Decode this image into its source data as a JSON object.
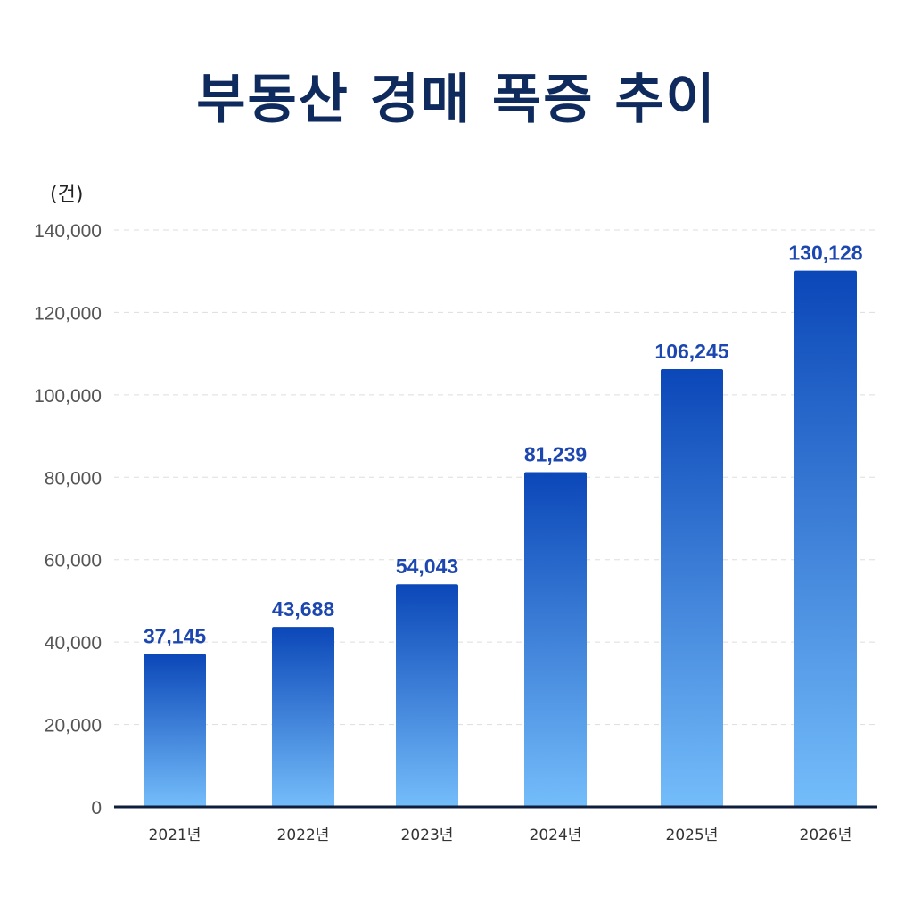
{
  "chart_data": {
    "type": "bar",
    "title": "부동산 경매 폭증 추이",
    "unit_label": "(건)",
    "categories": [
      "2021년",
      "2022년",
      "2023년",
      "2024년",
      "2025년",
      "2026년"
    ],
    "values": [
      37145,
      43688,
      54043,
      81239,
      106245,
      130128
    ],
    "value_labels": [
      "37,145",
      "43,688",
      "54,043",
      "81,239",
      "106,245",
      "130,128"
    ],
    "ylim": [
      0,
      140000
    ],
    "yticks": [
      0,
      20000,
      40000,
      60000,
      80000,
      100000,
      120000,
      140000
    ],
    "ytick_labels": [
      "0",
      "20,000",
      "40,000",
      "60,000",
      "80,000",
      "100,000",
      "120,000",
      "140,000"
    ],
    "grid": true,
    "colors": {
      "bar_top": "#0b47b8",
      "bar_bottom": "#74bdfa",
      "value_label": "#1d47b0",
      "baseline": "#0f1e3d",
      "grid": "#dddddd"
    }
  }
}
